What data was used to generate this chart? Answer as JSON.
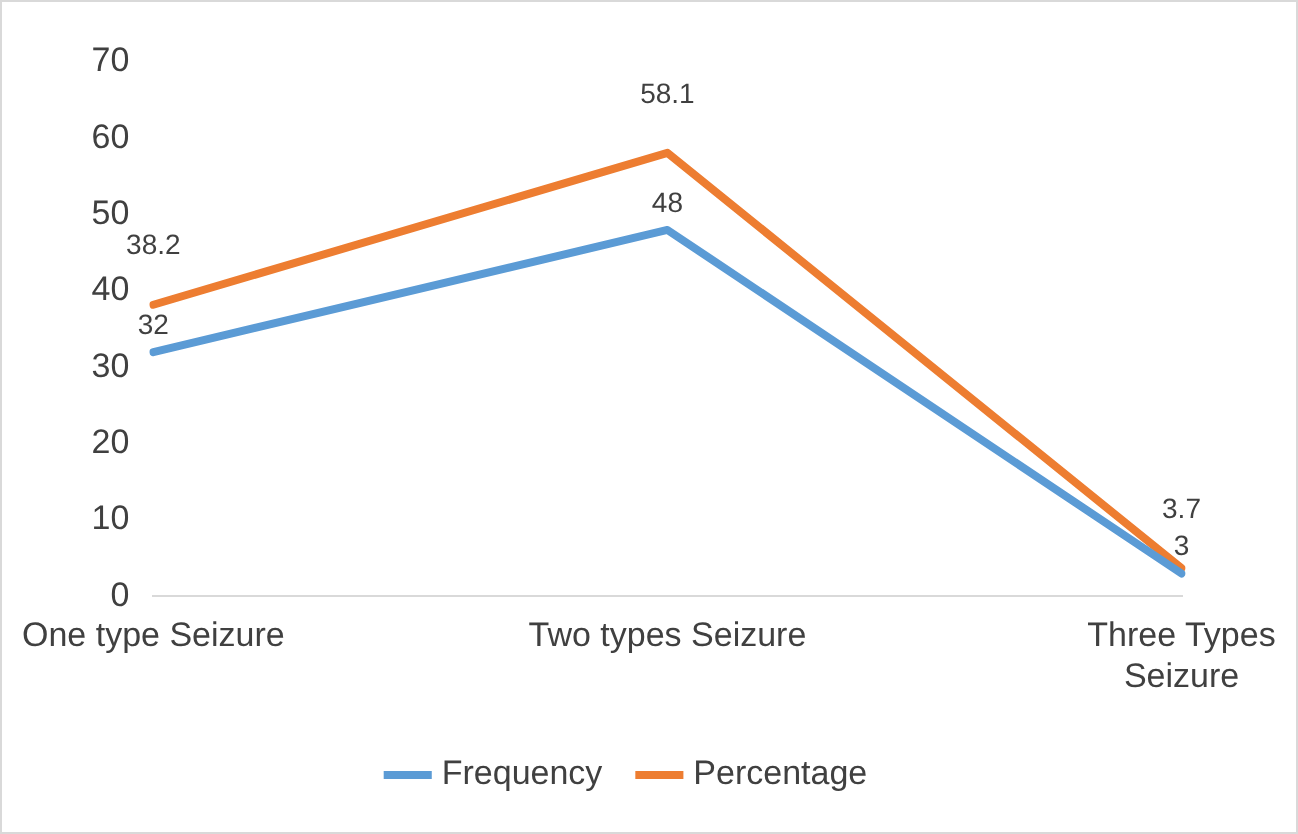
{
  "chart_data": {
    "type": "line",
    "categories": [
      "One type Seizure",
      "Two types Seizure",
      "Three Types Seizure"
    ],
    "series": [
      {
        "name": "Frequency",
        "color": "#5b9bd5",
        "values": [
          32,
          48,
          3
        ]
      },
      {
        "name": "Percentage",
        "color": "#ed7d31",
        "values": [
          38.2,
          58.1,
          3.7
        ]
      }
    ],
    "ylim": [
      0,
      70
    ],
    "yticks": [
      0,
      10,
      20,
      30,
      40,
      50,
      60,
      70
    ],
    "grid": false,
    "legend": "bottom",
    "marker": "none",
    "line_style": "solid",
    "data_labels": true
  }
}
